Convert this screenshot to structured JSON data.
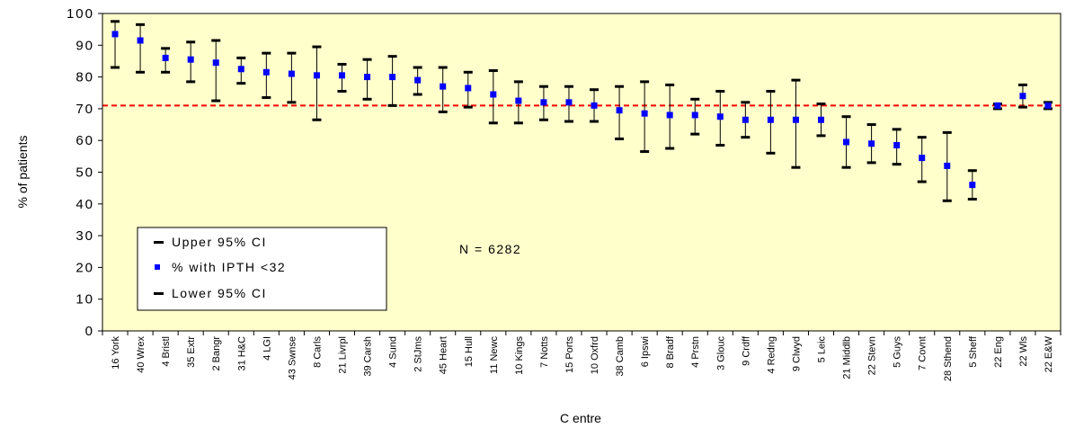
{
  "chart_data": {
    "type": "scatter",
    "xlabel": "C entre",
    "ylabel": "% of patients",
    "ylim": [
      0,
      100
    ],
    "yticks": [
      0,
      10,
      20,
      30,
      40,
      50,
      60,
      70,
      80,
      90,
      100
    ],
    "ytick_labels": [
      "0",
      "10",
      "20",
      "30",
      "40",
      "50",
      "60",
      "70",
      "80",
      "90",
      "100"
    ],
    "grid": false,
    "legend_placement": "bottom-left",
    "annotation": "N = 6282",
    "reference_line": {
      "value": 71,
      "style": "dashed",
      "color": "#ff0000"
    },
    "colors": {
      "plot_bg": "#ffffcc",
      "point": "#0000ff",
      "error_bar": "#000000",
      "reference": "#ff0000"
    },
    "categories": [
      "16 York",
      "40 Wrex",
      "4 Bristl",
      "35 Extr",
      "2 Bangr",
      "31 H&C",
      "4 LGI",
      "43 Swnse",
      "8 Carls",
      "21 Livrpl",
      "39 Carsh",
      "4 Sund",
      "2 StJms",
      "45 Heart",
      "15 Hull",
      "11 Newc",
      "10 Kings",
      "7 Notts",
      "15 Ports",
      "10 Oxfrd",
      "38 Camb",
      "6 Ipswi",
      "8 Bradf",
      "4 Prstn",
      "3 Glouc",
      "9 Crdff",
      "4 Redng",
      "9 Clwyd",
      "5 Leic",
      "21 Middlb",
      "22 Stevn",
      "5 Guys",
      "7 Covnt",
      "28 Sthend",
      "5 Sheff",
      "22 Eng",
      "22 Wls",
      "22 E&W"
    ],
    "series": [
      {
        "name": "Upper 95% CI",
        "values": [
          97.5,
          96.5,
          89,
          91,
          91.5,
          86,
          87.5,
          87.5,
          89.5,
          84,
          85.5,
          86.5,
          83,
          83,
          81.5,
          82,
          78.5,
          77,
          77,
          76,
          77,
          78.5,
          77.5,
          73,
          75.5,
          72,
          75.5,
          79,
          71.5,
          67.5,
          65,
          63.5,
          61,
          62.5,
          50.5,
          71.5,
          77.5,
          72
        ]
      },
      {
        "name": "% with IPTH <32",
        "values": [
          93.5,
          91.5,
          86,
          85.5,
          84.5,
          82.5,
          81.5,
          81,
          80.5,
          80.5,
          80,
          80,
          79,
          77,
          76.5,
          74.5,
          72.5,
          72,
          72,
          71,
          69.5,
          68.5,
          68,
          68,
          67.5,
          66.5,
          66.5,
          66.5,
          66.5,
          59.5,
          59,
          58.5,
          54.5,
          52,
          46,
          71,
          74,
          71
        ]
      },
      {
        "name": "Lower 95% CI",
        "values": [
          83,
          81.5,
          81.5,
          78.5,
          72.5,
          78,
          73.5,
          72,
          66.5,
          75.5,
          73,
          71,
          74.5,
          69,
          70.5,
          65.5,
          65.5,
          66.5,
          66,
          66,
          60.5,
          56.5,
          57.5,
          62,
          58.5,
          61,
          56,
          51.5,
          61.5,
          51.5,
          53,
          52.5,
          47,
          41,
          41.5,
          70,
          70.5,
          70
        ]
      }
    ]
  }
}
